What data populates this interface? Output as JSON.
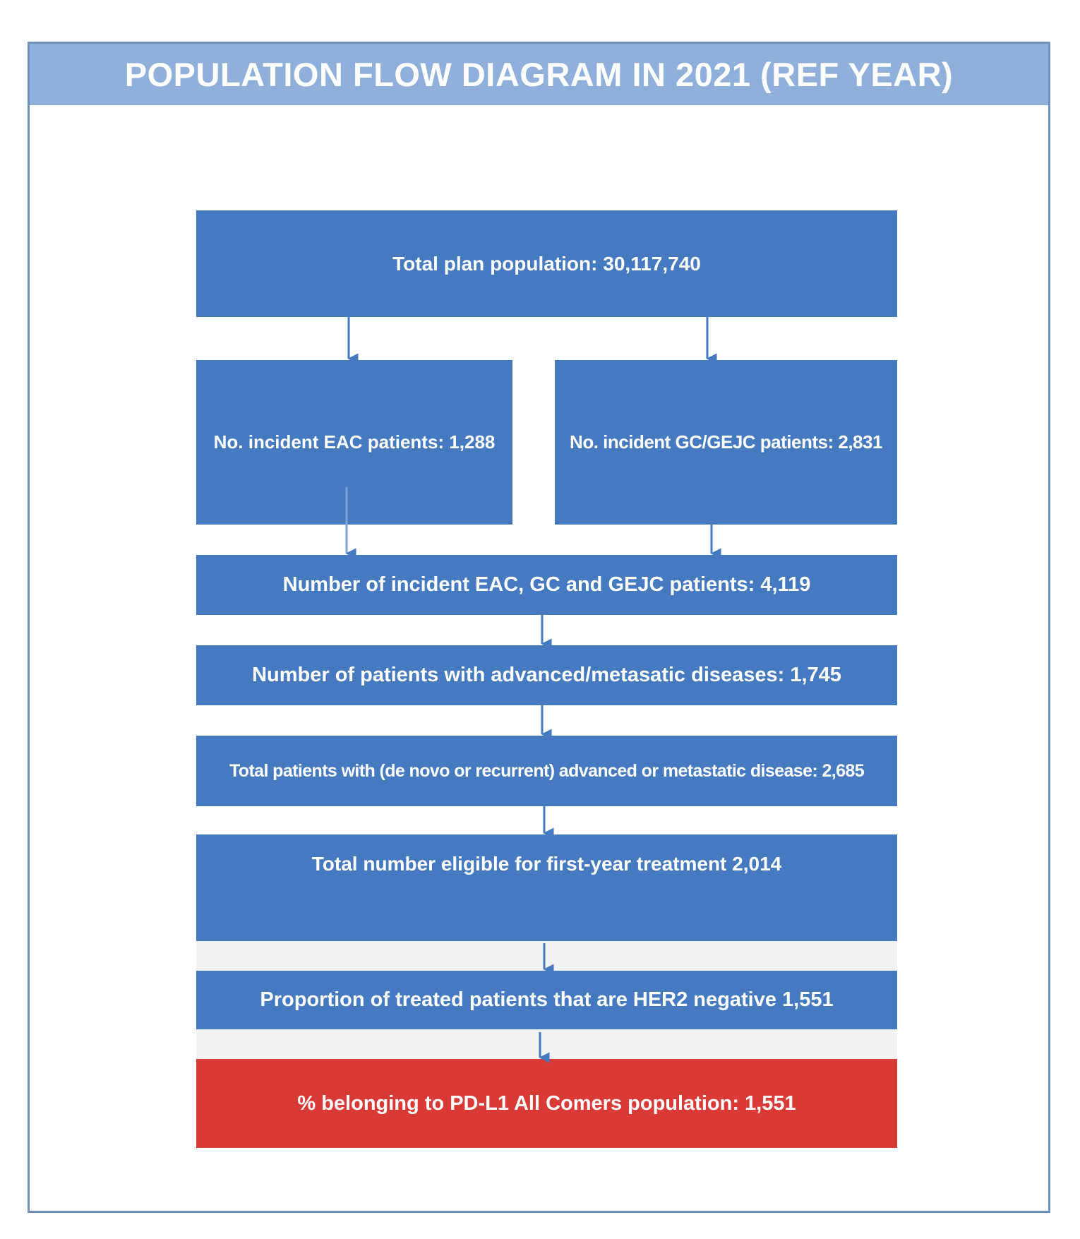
{
  "title": "POPULATION FLOW DIAGRAM IN 2021 (REF YEAR)",
  "boxes": {
    "total_plan": "Total plan population: 30,117,740",
    "eac": "No. incident EAC patients: 1,288",
    "gc_gejc": "No. incident GC/GEJC patients: 2,831",
    "combined": "Number of incident EAC, GC and GEJC patients: 4,119",
    "advanced": "Number of patients with advanced/metasatic diseases: 1,745",
    "total_advanced": "Total patients with (de novo or recurrent) advanced or metastatic disease: 2,685",
    "eligible": "Total number eligible for first-year treatment 2,014",
    "her2": "Proportion of treated patients that are HER2 negative 1,551",
    "pdl1": "% belonging to PD-L1 All Comers population: 1,551"
  },
  "colors": {
    "box": "#4579c0",
    "final_box": "#d93a35",
    "header": "#8fb0da",
    "border": "#6f8fbf",
    "band": "#f2f2f2"
  }
}
